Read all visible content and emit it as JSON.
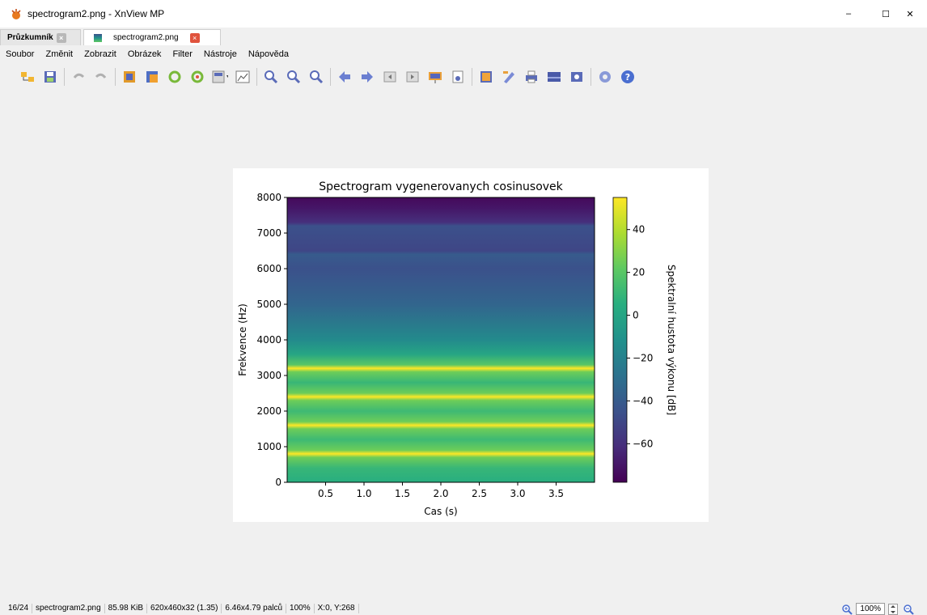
{
  "window": {
    "title": "spectrogram2.png - XnView MP",
    "minimize": "–",
    "maximize": "☐",
    "close": "✕"
  },
  "tabs": [
    {
      "label": "Průzkumník",
      "close": "×"
    },
    {
      "label": "spectrogram2.png",
      "close": "×"
    }
  ],
  "menu": [
    "Soubor",
    "Změnit",
    "Zobrazit",
    "Obrázek",
    "Filter",
    "Nástroje",
    "Nápověda"
  ],
  "toolbar_icons": [
    "browser-icon",
    "save-icon",
    "undo-icon",
    "redo-icon",
    "crop-icon",
    "resize-icon",
    "rotate-left-icon",
    "rotate-right-icon",
    "color-adjust-icon",
    "levels-icon",
    "zoom-in-icon",
    "zoom-fit-icon",
    "zoom-out-icon",
    "previous-icon",
    "next-icon",
    "first-page-icon",
    "last-page-icon",
    "slideshow-icon",
    "properties-icon",
    "fullscreen-icon",
    "edit-icon",
    "print-icon",
    "scanner-icon",
    "capture-icon",
    "settings-icon",
    "help-icon"
  ],
  "statusbar": {
    "index": "16/24",
    "filename": "spectrogram2.png",
    "filesize": "85.98 KiB",
    "dimensions": "620x460x32 (1.35)",
    "print_size": "6.46x4.79 palců",
    "zoom": "100%",
    "cursor": "X:0, Y:268"
  },
  "zoom_control": {
    "value": "100%"
  },
  "colors": {
    "accent_close": "#e0533d",
    "cmap_low": "#440154",
    "cmap_high": "#fde725"
  },
  "chart_data": {
    "type": "heatmap",
    "title": "Spectrogram vygenerovanych cosinusovek",
    "xlabel": "Cas (s)",
    "ylabel": "Frekvence (Hz)",
    "xlim": [
      0,
      4.0
    ],
    "ylim": [
      0,
      8000
    ],
    "xticks": [
      0.5,
      1.0,
      1.5,
      2.0,
      2.5,
      3.0,
      3.5
    ],
    "yticks": [
      0,
      1000,
      2000,
      3000,
      4000,
      5000,
      6000,
      7000,
      8000
    ],
    "colorbar": {
      "label": "Spektralní hustota výkonu [dB]",
      "ticks": [
        40,
        20,
        0,
        -20,
        -40,
        -60
      ],
      "range": [
        -78,
        55
      ]
    },
    "peaks_hz": [
      800,
      1600,
      2400,
      3200
    ],
    "profile": [
      {
        "f": 0,
        "db": 5
      },
      {
        "f": 400,
        "db": 10
      },
      {
        "f": 700,
        "db": 25
      },
      {
        "f": 800,
        "db": 55
      },
      {
        "f": 900,
        "db": 25
      },
      {
        "f": 1200,
        "db": 12
      },
      {
        "f": 1500,
        "db": 25
      },
      {
        "f": 1600,
        "db": 55
      },
      {
        "f": 1700,
        "db": 25
      },
      {
        "f": 2000,
        "db": 12
      },
      {
        "f": 2300,
        "db": 25
      },
      {
        "f": 2400,
        "db": 55
      },
      {
        "f": 2500,
        "db": 25
      },
      {
        "f": 2800,
        "db": 10
      },
      {
        "f": 3100,
        "db": 25
      },
      {
        "f": 3200,
        "db": 55
      },
      {
        "f": 3300,
        "db": 20
      },
      {
        "f": 3600,
        "db": 0
      },
      {
        "f": 4000,
        "db": -15
      },
      {
        "f": 5000,
        "db": -35
      },
      {
        "f": 6000,
        "db": -45
      },
      {
        "f": 6400,
        "db": -40
      },
      {
        "f": 6500,
        "db": -50
      },
      {
        "f": 7200,
        "db": -45
      },
      {
        "f": 7300,
        "db": -60
      },
      {
        "f": 7700,
        "db": -70
      },
      {
        "f": 8000,
        "db": -75
      }
    ]
  }
}
